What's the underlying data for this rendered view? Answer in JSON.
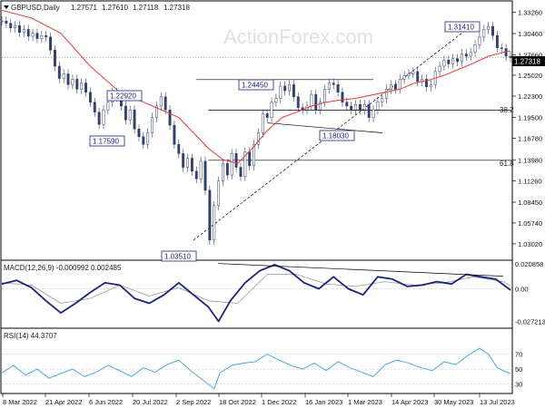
{
  "chart_data": [
    {
      "type": "line",
      "panel": "price",
      "title": "GBPUSD,Daily",
      "ohlc": [
        "1.27571",
        "1.27610",
        "1.27118",
        "1.27318"
      ],
      "watermark": "ActionForex.com",
      "price_tag": "1.27318",
      "ylim": [
        1.01,
        1.346
      ],
      "y_ticks": [
        "1.33260",
        "1.30460",
        "1.27660",
        "1.25020",
        "1.22300",
        "1.19500",
        "1.16780",
        "1.13980",
        "1.11260",
        "1.08450",
        "1.05740",
        "1.03020"
      ],
      "x_ticks": [
        "8 Mar 2022",
        "21 Apr 2022",
        "6 Jun 2022",
        "20 Jul 2022",
        "2 Sep 2022",
        "18 Oct 2022",
        "1 Dec 2022",
        "16 Jan 2023",
        "1 Mar 2023",
        "14 Apr 2023",
        "30 May 2023",
        "13 Jul 2023"
      ],
      "series": [
        {
          "role": "close",
          "color": "#1a237e",
          "x": [
            0,
            3,
            6,
            9,
            12,
            15,
            18,
            21,
            24,
            27,
            30,
            33,
            36,
            39,
            42,
            45,
            48,
            51,
            54,
            57,
            60,
            63,
            66,
            69,
            72,
            75,
            78,
            81,
            84,
            87,
            90,
            93,
            96,
            99,
            102,
            105,
            108,
            111,
            114,
            117,
            120,
            123,
            126,
            129,
            132,
            135,
            138,
            141,
            144,
            147,
            150,
            153,
            156,
            159,
            162,
            165,
            168,
            171,
            174,
            177,
            180,
            183,
            186,
            189,
            192,
            195,
            198,
            201,
            204,
            207,
            210,
            213,
            216,
            219,
            222,
            225,
            228,
            231,
            234,
            237,
            240,
            243,
            246,
            249,
            252,
            255,
            258,
            261,
            264,
            267,
            270,
            273,
            276,
            279,
            282,
            285,
            288,
            291,
            294,
            297,
            300,
            303,
            306,
            309,
            312,
            315,
            318,
            321,
            324,
            327,
            330,
            333,
            336,
            339,
            342,
            345
          ],
          "values": [
            1.321,
            1.318,
            1.312,
            1.315,
            1.306,
            1.31,
            1.301,
            1.305,
            1.298,
            1.302,
            1.3,
            1.283,
            1.262,
            1.246,
            1.252,
            1.238,
            1.245,
            1.232,
            1.24,
            1.228,
            1.215,
            1.202,
            1.186,
            1.205,
            1.215,
            1.228,
            1.222,
            1.21,
            1.192,
            1.205,
            1.18,
            1.17,
            1.16,
            1.175,
            1.195,
            1.21,
            1.222,
            1.205,
            1.185,
            1.16,
            1.148,
            1.13,
            1.142,
            1.125,
            1.115,
            1.138,
            1.1,
            1.035,
            1.08,
            1.112,
            1.135,
            1.12,
            1.148,
            1.13,
            1.118,
            1.15,
            1.132,
            1.16,
            1.175,
            1.2,
            1.195,
            1.215,
            1.22,
            1.236,
            1.23,
            1.238,
            1.222,
            1.208,
            1.205,
            1.21,
            1.225,
            1.205,
            1.215,
            1.232,
            1.24,
            1.238,
            1.228,
            1.215,
            1.21,
            1.205,
            1.212,
            1.205,
            1.212,
            1.195,
            1.205,
            1.215,
            1.22,
            1.232,
            1.238,
            1.232,
            1.245,
            1.25,
            1.252,
            1.255,
            1.242,
            1.245,
            1.235,
            1.238,
            1.255,
            1.262,
            1.27,
            1.265,
            1.272,
            1.268,
            1.278,
            1.275,
            1.28,
            1.29,
            1.3,
            1.31,
            1.314,
            1.302,
            1.286,
            1.285,
            1.275,
            1.2732
          ]
        },
        {
          "role": "moving-average",
          "color": "#e53935",
          "x": [
            0,
            20,
            40,
            60,
            80,
            100,
            120,
            130,
            140,
            150,
            160,
            170,
            180,
            190,
            200,
            210,
            220,
            230,
            240,
            250,
            260,
            270,
            280,
            290,
            300,
            310,
            320,
            330,
            340,
            345
          ],
          "values": [
            1.335,
            1.325,
            1.305,
            1.262,
            1.228,
            1.212,
            1.195,
            1.175,
            1.155,
            1.14,
            1.135,
            1.155,
            1.178,
            1.195,
            1.202,
            1.21,
            1.215,
            1.218,
            1.22,
            1.224,
            1.228,
            1.232,
            1.24,
            1.244,
            1.25,
            1.258,
            1.266,
            1.275,
            1.28,
            1.282
          ]
        }
      ],
      "annotations": [
        "1.22920",
        "1.17590",
        "1.24450",
        "1.18030",
        "1.31410",
        "1.03510"
      ],
      "fib_levels": [
        {
          "label": "38.2",
          "value": 1.2045
        },
        {
          "label": "61.8",
          "value": 1.1392
        }
      ]
    },
    {
      "type": "line",
      "panel": "macd",
      "title": "MACD(12,26,9) -0.000992 0.002485",
      "ylim": [
        -0.032,
        0.023
      ],
      "y_ticks": [
        "0.020858",
        "0.00",
        "-0.027213"
      ],
      "series": [
        {
          "role": "macd",
          "color": "#1a237e",
          "x": [
            0,
            10,
            20,
            30,
            40,
            50,
            60,
            70,
            80,
            90,
            100,
            110,
            120,
            130,
            140,
            147,
            155,
            165,
            175,
            185,
            195,
            205,
            215,
            225,
            235,
            245,
            255,
            265,
            275,
            285,
            295,
            305,
            315,
            325,
            335,
            345
          ],
          "values": [
            0.004,
            0.007,
            0.001,
            -0.01,
            -0.02,
            -0.012,
            -0.003,
            0.005,
            0.003,
            -0.008,
            -0.012,
            -0.005,
            0.005,
            -0.005,
            -0.015,
            -0.027,
            -0.01,
            0.005,
            0.015,
            0.02,
            0.015,
            0.005,
            0.0,
            0.01,
            0.0,
            -0.005,
            0.01,
            0.008,
            0.002,
            0.003,
            0.006,
            0.004,
            0.012,
            0.01,
            0.008,
            -0.001
          ]
        },
        {
          "role": "signal",
          "color": "#999999",
          "x": [
            0,
            20,
            40,
            60,
            80,
            100,
            120,
            140,
            160,
            180,
            200,
            220,
            240,
            260,
            280,
            300,
            320,
            340,
            345
          ],
          "values": [
            0.005,
            0.003,
            -0.012,
            -0.008,
            0.003,
            -0.006,
            0.001,
            -0.01,
            -0.012,
            0.012,
            0.012,
            0.004,
            0.002,
            0.006,
            0.003,
            0.005,
            0.01,
            0.006,
            0.0025
          ]
        }
      ]
    },
    {
      "type": "line",
      "panel": "rsi",
      "title": "RSI(14) 44.3707",
      "ylim": [
        20,
        90
      ],
      "y_ticks": [
        "70",
        "50",
        "30"
      ],
      "series": [
        {
          "role": "rsi",
          "color": "#3aa0e0",
          "x": [
            0,
            8,
            16,
            24,
            32,
            40,
            48,
            56,
            64,
            72,
            80,
            88,
            96,
            104,
            112,
            120,
            128,
            136,
            144,
            148,
            156,
            164,
            172,
            180,
            188,
            196,
            204,
            212,
            220,
            228,
            236,
            244,
            252,
            260,
            268,
            276,
            284,
            292,
            300,
            308,
            316,
            324,
            330,
            336,
            340,
            345
          ],
          "values": [
            45,
            55,
            42,
            50,
            38,
            44,
            50,
            40,
            46,
            55,
            48,
            40,
            52,
            46,
            56,
            62,
            48,
            36,
            24,
            45,
            55,
            58,
            60,
            70,
            62,
            55,
            50,
            58,
            48,
            60,
            52,
            46,
            40,
            56,
            62,
            58,
            52,
            48,
            60,
            56,
            68,
            78,
            70,
            52,
            48,
            44
          ]
        }
      ]
    }
  ]
}
